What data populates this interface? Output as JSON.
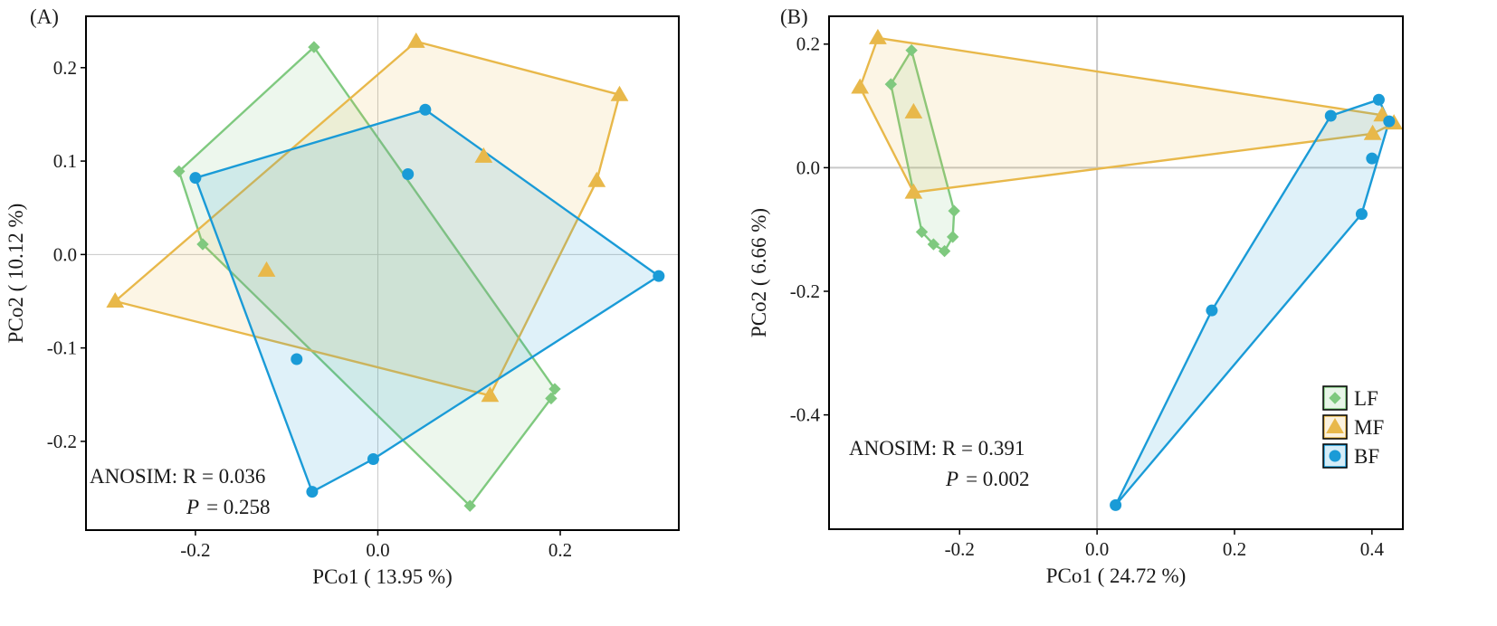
{
  "colors": {
    "LF": "#7fc97f",
    "MF": "#e8b84a",
    "BF": "#1a9bd7",
    "axis": "#000000",
    "zero_line": "#c8c8c8"
  },
  "chart_data": [
    {
      "type": "scatter",
      "panel_label": "(A)",
      "xlabel": "PCo1 ( 13.95 %)",
      "ylabel": "PCo2 ( 10.12 %)",
      "xlim": [
        -0.32,
        0.33
      ],
      "ylim": [
        -0.295,
        0.255
      ],
      "xticks": [
        -0.2,
        0.0,
        0.2
      ],
      "xtick_labels": [
        "-0.2",
        "0.0",
        "0.2"
      ],
      "yticks": [
        -0.2,
        -0.1,
        0.0,
        0.1,
        0.2
      ],
      "ytick_labels": [
        "-0.2",
        "-0.1",
        "0.0",
        "0.1",
        "0.2"
      ],
      "zero_line_style": "thin",
      "anosim": {
        "label": "ANOSIM: R = 0.036",
        "p_symbol": "P",
        "p_value": "= 0.258",
        "position": "bottom-left"
      },
      "series": [
        {
          "name": "LF",
          "marker": "diamond",
          "points": [
            [
              -0.07,
              0.222
            ],
            [
              -0.218,
              0.089
            ],
            [
              -0.192,
              0.011
            ],
            [
              0.194,
              -0.144
            ],
            [
              0.19,
              -0.154
            ],
            [
              0.101,
              -0.269
            ]
          ]
        },
        {
          "name": "MF",
          "marker": "triangle",
          "points": [
            [
              0.042,
              0.228
            ],
            [
              0.265,
              0.171
            ],
            [
              0.116,
              0.105
            ],
            [
              0.24,
              0.079
            ],
            [
              -0.122,
              -0.017
            ],
            [
              -0.288,
              -0.05
            ],
            [
              0.123,
              -0.151
            ]
          ]
        },
        {
          "name": "BF",
          "marker": "circle",
          "points": [
            [
              0.052,
              0.155
            ],
            [
              -0.2,
              0.082
            ],
            [
              0.033,
              0.086
            ],
            [
              0.308,
              -0.023
            ],
            [
              -0.089,
              -0.112
            ],
            [
              -0.005,
              -0.219
            ],
            [
              -0.072,
              -0.254
            ]
          ]
        }
      ]
    },
    {
      "type": "scatter",
      "panel_label": "(B)",
      "xlabel": "PCo1 ( 24.72 %)",
      "ylabel": "PCo2 ( 6.66 %)",
      "xlim": [
        -0.39,
        0.445
      ],
      "ylim": [
        -0.585,
        0.245
      ],
      "xticks": [
        -0.2,
        0.0,
        0.2,
        0.4
      ],
      "xtick_labels": [
        "-0.2",
        "0.0",
        "0.2",
        "0.4"
      ],
      "yticks": [
        -0.4,
        -0.2,
        0.0,
        0.2
      ],
      "ytick_labels": [
        "-0.4",
        "-0.2",
        "0.0",
        "0.2"
      ],
      "zero_line_style": "thick",
      "anosim": {
        "label": "ANOSIM: R = 0.391",
        "p_symbol": "P",
        "p_value": "= 0.002",
        "position": "bottom-left"
      },
      "legend": {
        "position": "right",
        "entries": [
          "LF",
          "MF",
          "BF"
        ]
      },
      "series": [
        {
          "name": "LF",
          "marker": "diamond",
          "points": [
            [
              -0.27,
              0.19
            ],
            [
              -0.3,
              0.135
            ],
            [
              -0.208,
              -0.07
            ],
            [
              -0.21,
              -0.112
            ],
            [
              -0.255,
              -0.104
            ],
            [
              -0.238,
              -0.124
            ],
            [
              -0.222,
              -0.135
            ]
          ]
        },
        {
          "name": "MF",
          "marker": "triangle",
          "points": [
            [
              -0.319,
              0.21
            ],
            [
              -0.345,
              0.13
            ],
            [
              -0.267,
              0.09
            ],
            [
              -0.267,
              -0.04
            ],
            [
              0.415,
              0.085
            ],
            [
              0.432,
              0.072
            ],
            [
              0.401,
              0.055
            ]
          ]
        },
        {
          "name": "BF",
          "marker": "circle",
          "points": [
            [
              0.41,
              0.11
            ],
            [
              0.34,
              0.084
            ],
            [
              0.425,
              0.075
            ],
            [
              0.4,
              0.015
            ],
            [
              0.385,
              -0.075
            ],
            [
              0.167,
              -0.231
            ],
            [
              0.027,
              -0.546
            ]
          ]
        }
      ]
    }
  ]
}
